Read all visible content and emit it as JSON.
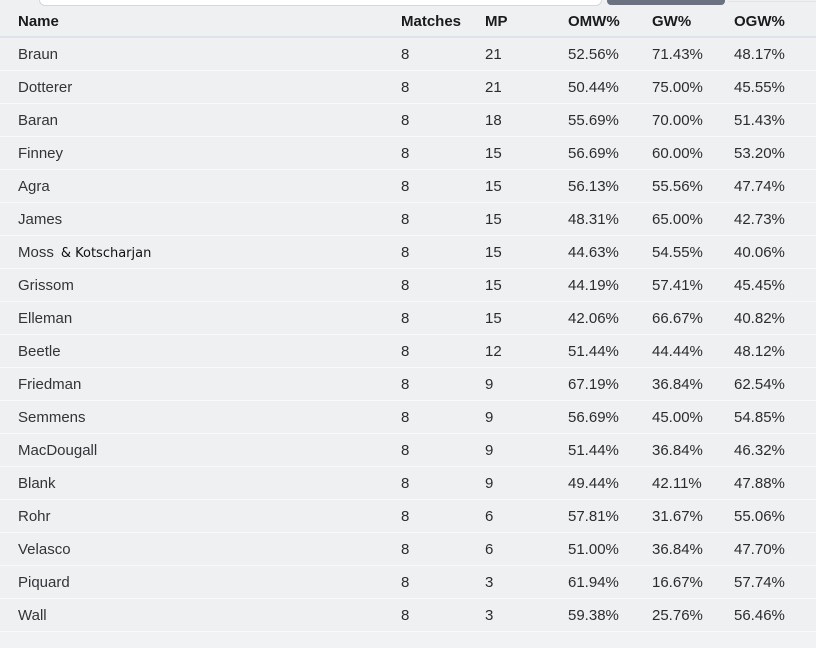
{
  "colors": {
    "page_bg": "#f1f2f4",
    "header_bg": "#eef0f2",
    "row_bg": "#eff0f2",
    "row_divider": "#f8f9fa",
    "header_divider": "#dde3e9",
    "partial_button": "#6b7380",
    "text": "#2b2c2e"
  },
  "table": {
    "columns": [
      "Name",
      "Matches",
      "MP",
      "OMW%",
      "GW%",
      "OGW%"
    ],
    "rows": [
      {
        "name": "Braun",
        "matches": "8",
        "mp": "21",
        "omw": "52.56%",
        "gw": "71.43%",
        "ogw": "48.17%"
      },
      {
        "name": "Dotterer",
        "matches": "8",
        "mp": "21",
        "omw": "50.44%",
        "gw": "75.00%",
        "ogw": "45.55%"
      },
      {
        "name": "Baran",
        "matches": "8",
        "mp": "18",
        "omw": "55.69%",
        "gw": "70.00%",
        "ogw": "51.43%"
      },
      {
        "name": "Finney",
        "matches": "8",
        "mp": "15",
        "omw": "56.69%",
        "gw": "60.00%",
        "ogw": "53.20%"
      },
      {
        "name": "Agra",
        "matches": "8",
        "mp": "15",
        "omw": "56.13%",
        "gw": "55.56%",
        "ogw": "47.74%"
      },
      {
        "name": "James",
        "matches": "8",
        "mp": "15",
        "omw": "48.31%",
        "gw": "65.00%",
        "ogw": "42.73%"
      },
      {
        "name": "Moss",
        "name_suffix": "& Kotscharjan",
        "matches": "8",
        "mp": "15",
        "omw": "44.63%",
        "gw": "54.55%",
        "ogw": "40.06%"
      },
      {
        "name": "Grissom",
        "matches": "8",
        "mp": "15",
        "omw": "44.19%",
        "gw": "57.41%",
        "ogw": "45.45%"
      },
      {
        "name": "Elleman",
        "matches": "8",
        "mp": "15",
        "omw": "42.06%",
        "gw": "66.67%",
        "ogw": "40.82%"
      },
      {
        "name": "Beetle",
        "matches": "8",
        "mp": "12",
        "omw": "51.44%",
        "gw": "44.44%",
        "ogw": "48.12%"
      },
      {
        "name": "Friedman",
        "matches": "8",
        "mp": "9",
        "omw": "67.19%",
        "gw": "36.84%",
        "ogw": "62.54%"
      },
      {
        "name": "Semmens",
        "matches": "8",
        "mp": "9",
        "omw": "56.69%",
        "gw": "45.00%",
        "ogw": "54.85%"
      },
      {
        "name": "MacDougall",
        "matches": "8",
        "mp": "9",
        "omw": "51.44%",
        "gw": "36.84%",
        "ogw": "46.32%"
      },
      {
        "name": "Blank",
        "matches": "8",
        "mp": "9",
        "omw": "49.44%",
        "gw": "42.11%",
        "ogw": "47.88%"
      },
      {
        "name": "Rohr",
        "matches": "8",
        "mp": "6",
        "omw": "57.81%",
        "gw": "31.67%",
        "ogw": "55.06%"
      },
      {
        "name": "Velasco",
        "matches": "8",
        "mp": "6",
        "omw": "51.00%",
        "gw": "36.84%",
        "ogw": "47.70%"
      },
      {
        "name": "Piquard",
        "matches": "8",
        "mp": "3",
        "omw": "61.94%",
        "gw": "16.67%",
        "ogw": "57.74%"
      },
      {
        "name": "Wall",
        "matches": "8",
        "mp": "3",
        "omw": "59.38%",
        "gw": "25.76%",
        "ogw": "56.46%"
      }
    ]
  }
}
